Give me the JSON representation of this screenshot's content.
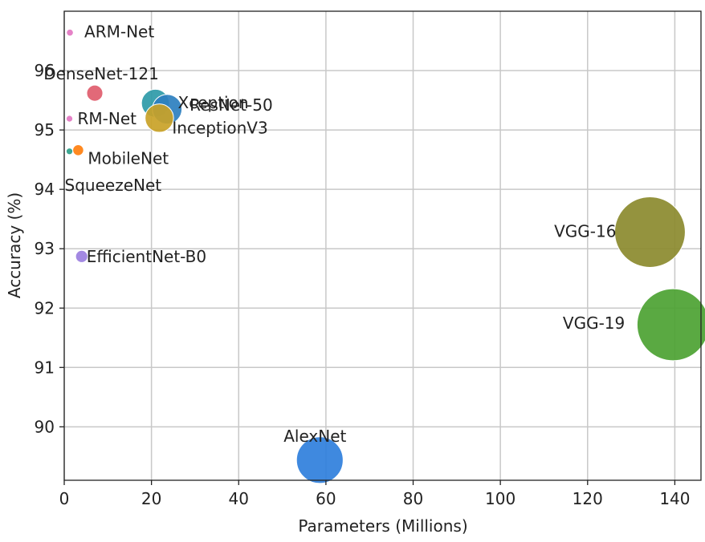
{
  "chart_data": {
    "type": "scatter",
    "xlabel": "Parameters (Millions)",
    "ylabel": "Accuracy (%)",
    "xlim": [
      0,
      146
    ],
    "ylim": [
      89.1,
      97.0
    ],
    "x_ticks": [
      0,
      20,
      40,
      60,
      80,
      100,
      120,
      140
    ],
    "y_ticks": [
      90,
      91,
      92,
      93,
      94,
      95,
      96
    ],
    "grid": true,
    "legend": "none",
    "size_encodes": "parameters",
    "points": [
      {
        "name": "ARM-Net",
        "x": 1.3,
        "y": 96.64,
        "color": "#e377c2"
      },
      {
        "name": "DenseNet-121",
        "x": 7.0,
        "y": 95.62,
        "color": "#e05c6c"
      },
      {
        "name": "Xception",
        "x": 20.9,
        "y": 95.45,
        "color": "#2e9aa8"
      },
      {
        "name": "ResNet-50",
        "x": 23.6,
        "y": 95.35,
        "color": "#2d7fbf"
      },
      {
        "name": "InceptionV3",
        "x": 21.8,
        "y": 95.2,
        "color": "#c9a227"
      },
      {
        "name": "RM-Net",
        "x": 1.2,
        "y": 95.19,
        "color": "#e377c2"
      },
      {
        "name": "MobileNet",
        "x": 3.2,
        "y": 94.66,
        "color": "#ff7f0e"
      },
      {
        "name": "SqueezeNet",
        "x": 1.2,
        "y": 94.64,
        "color": "#2ca089"
      },
      {
        "name": "EfficientNet-B0",
        "x": 4.0,
        "y": 92.87,
        "color": "#9b7fe0"
      },
      {
        "name": "VGG-16",
        "x": 134.3,
        "y": 93.28,
        "color": "#8b8a2e"
      },
      {
        "name": "VGG-19",
        "x": 139.6,
        "y": 91.72,
        "color": "#4ca232"
      },
      {
        "name": "AlexNet",
        "x": 58.6,
        "y": 89.44,
        "color": "#2f7fdc"
      }
    ]
  }
}
